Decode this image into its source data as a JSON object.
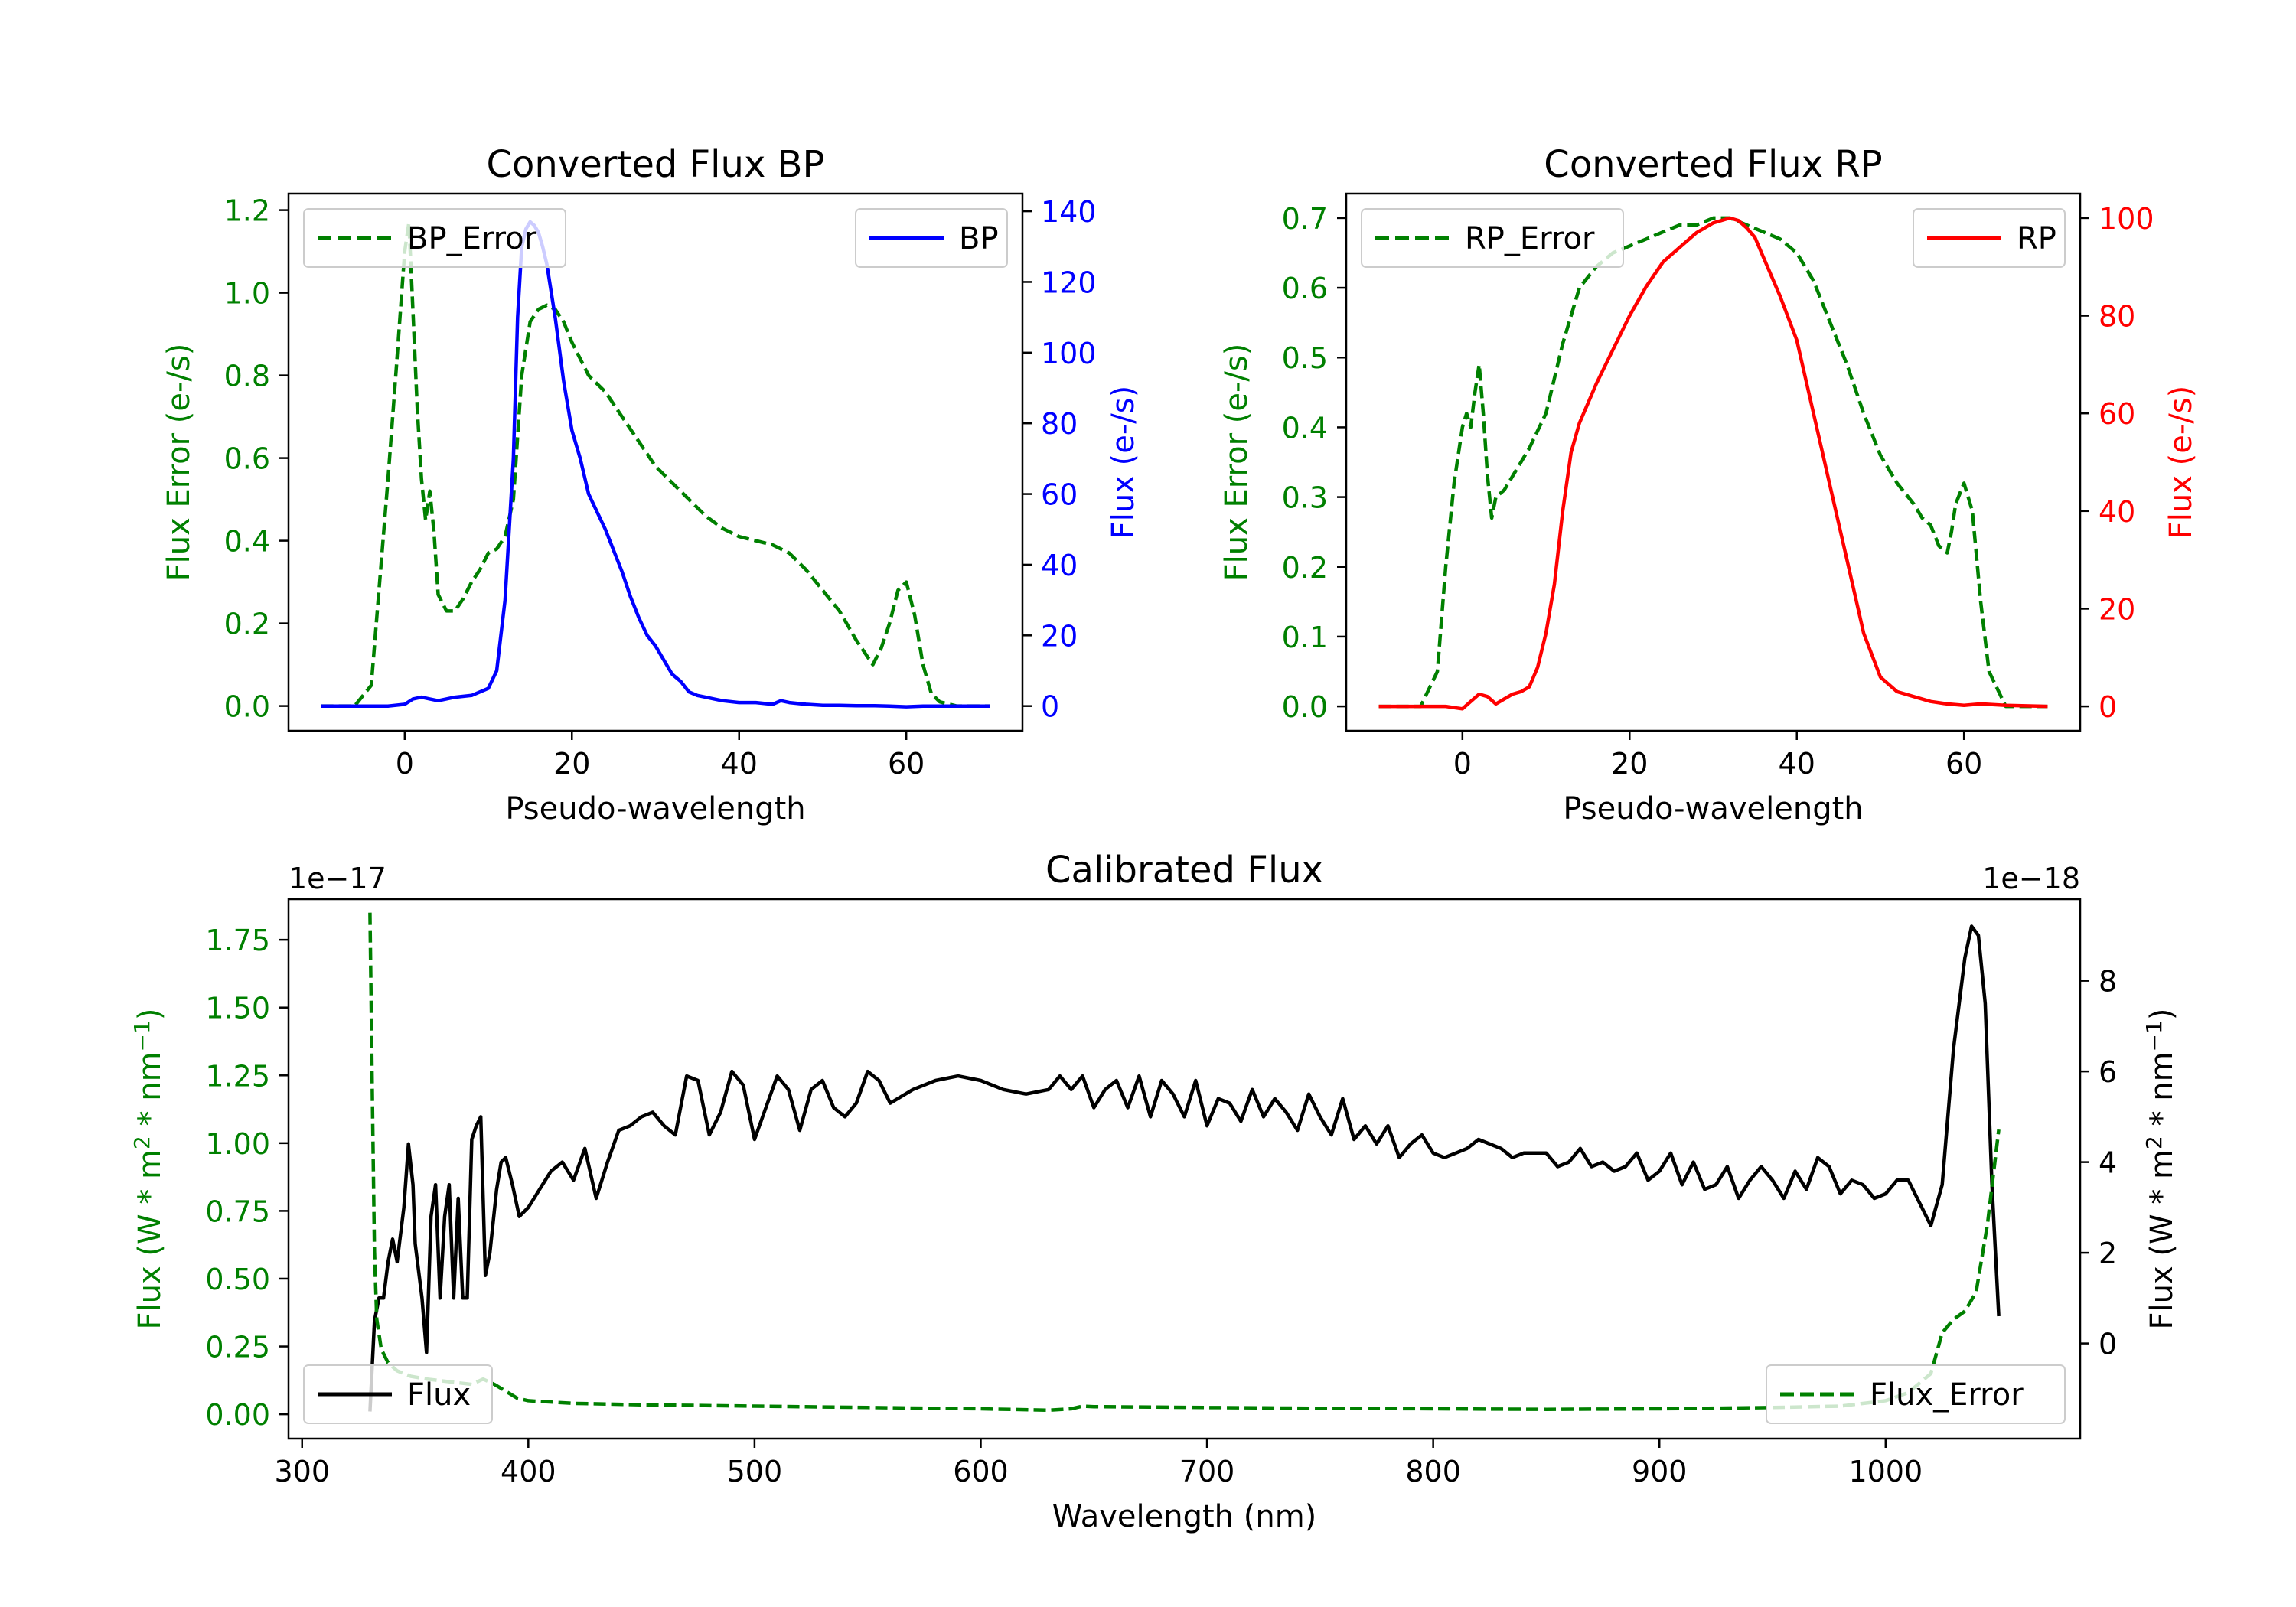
{
  "chart_data": [
    {
      "type": "line",
      "id": "bp",
      "title": "Converted Flux BP",
      "xlabel": "Pseudo-wavelength",
      "ylabel_left": "Flux Error (e-/s)",
      "ylabel_right": "Flux (e-/s)",
      "xlim": [
        -13.9,
        73.9
      ],
      "ylim_left": [
        -0.06,
        1.24
      ],
      "ylim_right": [
        -7,
        145
      ],
      "xticks": [
        0,
        20,
        40,
        60
      ],
      "yticks_left": [
        0.0,
        0.2,
        0.4,
        0.6,
        0.8,
        1.0,
        1.2
      ],
      "yticks_right": [
        0,
        20,
        40,
        60,
        80,
        100,
        120,
        140
      ],
      "left_color": "#008000",
      "right_color": "#0000ff",
      "series": [
        {
          "name": "BP_Error",
          "axis": "left",
          "color": "#008000",
          "style": "dashed",
          "legend_pos": "upper-left",
          "x": [
            -10,
            -6,
            -4,
            -2,
            -1,
            0,
            0.5,
            1,
            1.5,
            2,
            2.5,
            3,
            3.5,
            4,
            5,
            6,
            7,
            8,
            9,
            10,
            11,
            12,
            13,
            14,
            15,
            16,
            17,
            18,
            19,
            20,
            22,
            24,
            26,
            28,
            30,
            32,
            34,
            36,
            38,
            40,
            42,
            44,
            46,
            48,
            50,
            52,
            54,
            56,
            57,
            58,
            59,
            60,
            61,
            62,
            63,
            64,
            66,
            68,
            70
          ],
          "values": [
            0.0,
            0.0,
            0.05,
            0.55,
            0.82,
            1.1,
            1.17,
            0.95,
            0.72,
            0.55,
            0.45,
            0.52,
            0.42,
            0.27,
            0.23,
            0.23,
            0.26,
            0.3,
            0.33,
            0.37,
            0.38,
            0.41,
            0.5,
            0.8,
            0.93,
            0.96,
            0.97,
            0.96,
            0.93,
            0.88,
            0.8,
            0.76,
            0.7,
            0.64,
            0.58,
            0.54,
            0.5,
            0.46,
            0.43,
            0.41,
            0.4,
            0.39,
            0.37,
            0.33,
            0.28,
            0.23,
            0.16,
            0.1,
            0.14,
            0.2,
            0.28,
            0.3,
            0.22,
            0.1,
            0.03,
            0.01,
            0.0,
            0.0,
            0.0
          ]
        },
        {
          "name": "BP",
          "axis": "right",
          "color": "#0000ff",
          "style": "solid",
          "legend_pos": "upper-right",
          "x": [
            -10,
            -2,
            0,
            1,
            2,
            3,
            4,
            6,
            8,
            10,
            11,
            12,
            13,
            13.5,
            14,
            14.5,
            15,
            15.5,
            16,
            16.5,
            17,
            18,
            19,
            20,
            21,
            22,
            23,
            24,
            25,
            26,
            27,
            28,
            29,
            30,
            31,
            32,
            33,
            34,
            35,
            36,
            37,
            38,
            40,
            42,
            44,
            45,
            46,
            48,
            50,
            52,
            54,
            56,
            58,
            60,
            62,
            64,
            66,
            70
          ],
          "values": [
            0,
            0,
            0.5,
            2,
            2.5,
            2,
            1.5,
            2.5,
            3,
            5,
            10,
            30,
            70,
            110,
            130,
            135,
            137,
            136,
            134,
            130,
            125,
            110,
            92,
            78,
            70,
            60,
            55,
            50,
            44,
            38,
            31,
            25,
            20,
            17,
            13,
            9,
            7,
            4,
            3,
            2.5,
            2,
            1.5,
            1,
            1,
            0.5,
            1.5,
            1,
            0.5,
            0.2,
            0.2,
            0.1,
            0.1,
            0,
            -0.2,
            0,
            0,
            0,
            0
          ]
        }
      ]
    },
    {
      "type": "line",
      "id": "rp",
      "title": "Converted Flux RP",
      "xlabel": "Pseudo-wavelength",
      "ylabel_left": "Flux Error (e-/s)",
      "ylabel_right": "Flux (e-/s)",
      "xlim": [
        -13.9,
        73.9
      ],
      "ylim_left": [
        -0.035,
        0.735
      ],
      "ylim_right": [
        -5,
        105
      ],
      "xticks": [
        0,
        20,
        40,
        60
      ],
      "yticks_left": [
        0.0,
        0.1,
        0.2,
        0.3,
        0.4,
        0.5,
        0.6,
        0.7
      ],
      "yticks_right": [
        0,
        20,
        40,
        60,
        80,
        100
      ],
      "left_color": "#008000",
      "right_color": "#ff0000",
      "series": [
        {
          "name": "RP_Error",
          "axis": "left",
          "color": "#008000",
          "style": "dashed",
          "legend_pos": "upper-left",
          "x": [
            -10,
            -5,
            -3,
            -2,
            -1,
            0,
            0.5,
            1,
            1.5,
            2,
            2.5,
            3,
            3.5,
            4,
            5,
            6,
            7,
            8,
            10,
            12,
            14,
            16,
            18,
            20,
            22,
            24,
            26,
            28,
            30,
            32,
            34,
            36,
            38,
            40,
            42,
            44,
            46,
            48,
            50,
            52,
            54,
            55,
            56,
            57,
            58,
            58.5,
            59,
            60,
            61,
            62,
            63,
            65,
            70
          ],
          "values": [
            0.0,
            0.0,
            0.05,
            0.2,
            0.32,
            0.4,
            0.42,
            0.4,
            0.45,
            0.49,
            0.42,
            0.33,
            0.27,
            0.3,
            0.31,
            0.33,
            0.35,
            0.37,
            0.42,
            0.52,
            0.6,
            0.63,
            0.65,
            0.66,
            0.67,
            0.68,
            0.69,
            0.69,
            0.7,
            0.7,
            0.69,
            0.68,
            0.67,
            0.65,
            0.61,
            0.55,
            0.49,
            0.42,
            0.36,
            0.32,
            0.29,
            0.27,
            0.26,
            0.23,
            0.22,
            0.25,
            0.29,
            0.32,
            0.28,
            0.15,
            0.05,
            0.0,
            0.0
          ]
        },
        {
          "name": "RP",
          "axis": "right",
          "color": "#ff0000",
          "style": "solid",
          "legend_pos": "upper-right",
          "x": [
            -10,
            -4,
            -2,
            0,
            1,
            2,
            3,
            4,
            5,
            6,
            7,
            8,
            9,
            10,
            11,
            12,
            13,
            14,
            15,
            16,
            18,
            20,
            22,
            24,
            26,
            28,
            30,
            31,
            32,
            33,
            34,
            35,
            36,
            38,
            40,
            42,
            44,
            46,
            48,
            50,
            52,
            54,
            56,
            58,
            60,
            62,
            65,
            70
          ],
          "values": [
            0,
            0,
            0,
            -0.5,
            1,
            2.5,
            2,
            0.5,
            1.5,
            2.5,
            3,
            4,
            8,
            15,
            25,
            40,
            52,
            58,
            62,
            66,
            73,
            80,
            86,
            91,
            94,
            97,
            99,
            99.5,
            100,
            99.5,
            98,
            96,
            92,
            84,
            75,
            60,
            45,
            30,
            15,
            6,
            3,
            2,
            1,
            0.5,
            0.2,
            0.5,
            0.2,
            0
          ]
        }
      ]
    },
    {
      "type": "line",
      "id": "cal",
      "title": "Calibrated Flux",
      "xlabel": "Wavelength (nm)",
      "ylabel_left": "Flux (W * m^2 * nm^-1)",
      "ylabel_right": "Flux (W * m^2 * nm^-1)",
      "offset_left": "1e−17",
      "offset_right": "1e−18",
      "xlim": [
        294,
        1086
      ],
      "ylim_left": [
        -0.09,
        1.9
      ],
      "ylim_right": [
        -2.1,
        9.8
      ],
      "xticks": [
        300,
        400,
        500,
        600,
        700,
        800,
        900,
        1000
      ],
      "yticks_left": [
        0.0,
        0.25,
        0.5,
        0.75,
        1.0,
        1.25,
        1.5,
        1.75
      ],
      "yticks_right": [
        0,
        2,
        4,
        6,
        8
      ],
      "left_color": "#008000",
      "right_color": "#000000",
      "series": [
        {
          "name": "Flux",
          "axis": "right",
          "color": "#000000",
          "style": "solid",
          "legend_pos": "lower-left",
          "x": [
            330,
            332,
            334,
            336,
            338,
            340,
            342,
            345,
            347,
            349,
            350,
            353,
            355,
            357,
            359,
            361,
            363,
            365,
            367,
            369,
            371,
            373,
            375,
            377,
            379,
            381,
            383,
            386,
            388,
            390,
            393,
            396,
            400,
            405,
            410,
            415,
            420,
            425,
            430,
            435,
            440,
            445,
            450,
            455,
            460,
            465,
            470,
            475,
            480,
            485,
            490,
            495,
            500,
            505,
            510,
            515,
            520,
            525,
            530,
            535,
            540,
            545,
            550,
            555,
            560,
            570,
            580,
            590,
            600,
            610,
            620,
            630,
            635,
            640,
            645,
            650,
            655,
            660,
            665,
            670,
            675,
            680,
            685,
            690,
            695,
            700,
            705,
            710,
            715,
            720,
            725,
            730,
            735,
            740,
            745,
            750,
            755,
            760,
            765,
            770,
            775,
            780,
            785,
            790,
            795,
            800,
            805,
            810,
            815,
            820,
            825,
            830,
            835,
            840,
            845,
            850,
            855,
            860,
            865,
            870,
            875,
            880,
            885,
            890,
            895,
            900,
            905,
            910,
            915,
            920,
            925,
            930,
            935,
            940,
            945,
            950,
            955,
            960,
            965,
            970,
            975,
            980,
            985,
            990,
            995,
            1000,
            1005,
            1010,
            1015,
            1020,
            1025,
            1030,
            1035,
            1038,
            1041,
            1044,
            1047,
            1050
          ],
          "values": [
            -1.5,
            0.5,
            1.0,
            1.0,
            1.8,
            2.3,
            1.8,
            3.0,
            4.4,
            3.5,
            2.2,
            1.0,
            -0.2,
            2.8,
            3.5,
            1.0,
            2.8,
            3.5,
            1.0,
            3.2,
            1.0,
            1.0,
            4.5,
            4.8,
            5.0,
            1.5,
            2.0,
            3.4,
            4.0,
            4.1,
            3.5,
            2.8,
            3.0,
            3.4,
            3.8,
            4.0,
            3.6,
            4.3,
            3.2,
            4.0,
            4.7,
            4.8,
            5.0,
            5.1,
            4.8,
            4.6,
            5.9,
            5.8,
            4.6,
            5.1,
            6.0,
            5.7,
            4.5,
            5.2,
            5.9,
            5.6,
            4.7,
            5.6,
            5.8,
            5.2,
            5.0,
            5.3,
            6.0,
            5.8,
            5.3,
            5.6,
            5.8,
            5.9,
            5.8,
            5.6,
            5.5,
            5.6,
            5.9,
            5.6,
            5.9,
            5.2,
            5.6,
            5.8,
            5.2,
            5.9,
            5.0,
            5.8,
            5.5,
            5.0,
            5.8,
            4.8,
            5.4,
            5.3,
            4.9,
            5.6,
            5.0,
            5.4,
            5.1,
            4.7,
            5.5,
            5.0,
            4.6,
            5.4,
            4.5,
            4.8,
            4.4,
            4.8,
            4.1,
            4.4,
            4.6,
            4.2,
            4.1,
            4.2,
            4.3,
            4.5,
            4.4,
            4.3,
            4.1,
            4.2,
            4.2,
            4.2,
            3.9,
            4.0,
            4.3,
            3.9,
            4.0,
            3.8,
            3.9,
            4.2,
            3.6,
            3.8,
            4.2,
            3.5,
            4.0,
            3.4,
            3.5,
            3.9,
            3.2,
            3.6,
            3.9,
            3.6,
            3.2,
            3.8,
            3.4,
            4.1,
            3.9,
            3.3,
            3.6,
            3.5,
            3.2,
            3.3,
            3.6,
            3.6,
            3.1,
            2.6,
            3.5,
            6.5,
            8.5,
            9.2,
            9.0,
            7.5,
            3.5,
            0.6
          ]
        },
        {
          "name": "Flux_Error",
          "axis": "left",
          "color": "#008000",
          "style": "dashed",
          "legend_pos": "lower-right",
          "x": [
            330,
            331,
            332,
            333,
            335,
            338,
            342,
            348,
            355,
            365,
            375,
            380,
            385,
            395,
            400,
            420,
            450,
            500,
            550,
            600,
            630,
            640,
            645,
            650,
            700,
            750,
            800,
            850,
            900,
            950,
            980,
            1000,
            1010,
            1020,
            1025,
            1030,
            1035,
            1040,
            1045,
            1050
          ],
          "values": [
            1.85,
            1.2,
            0.6,
            0.35,
            0.24,
            0.19,
            0.16,
            0.14,
            0.13,
            0.12,
            0.11,
            0.13,
            0.11,
            0.06,
            0.05,
            0.04,
            0.035,
            0.03,
            0.025,
            0.02,
            0.015,
            0.02,
            0.03,
            0.028,
            0.025,
            0.022,
            0.02,
            0.018,
            0.02,
            0.025,
            0.03,
            0.05,
            0.08,
            0.15,
            0.3,
            0.35,
            0.38,
            0.45,
            0.7,
            1.05
          ]
        }
      ]
    }
  ]
}
